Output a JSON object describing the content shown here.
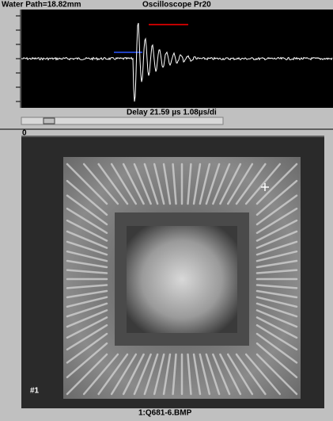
{
  "header": {
    "left": "Water Path=18.82mm",
    "title": "Oscilloscope Pr20"
  },
  "scope": {
    "delay": "Delay 21.59 µs 1.08µs/di"
  },
  "image": {
    "ruler_start": "0",
    "marker": "#1",
    "filename": "1:Q681-6.BMP"
  }
}
